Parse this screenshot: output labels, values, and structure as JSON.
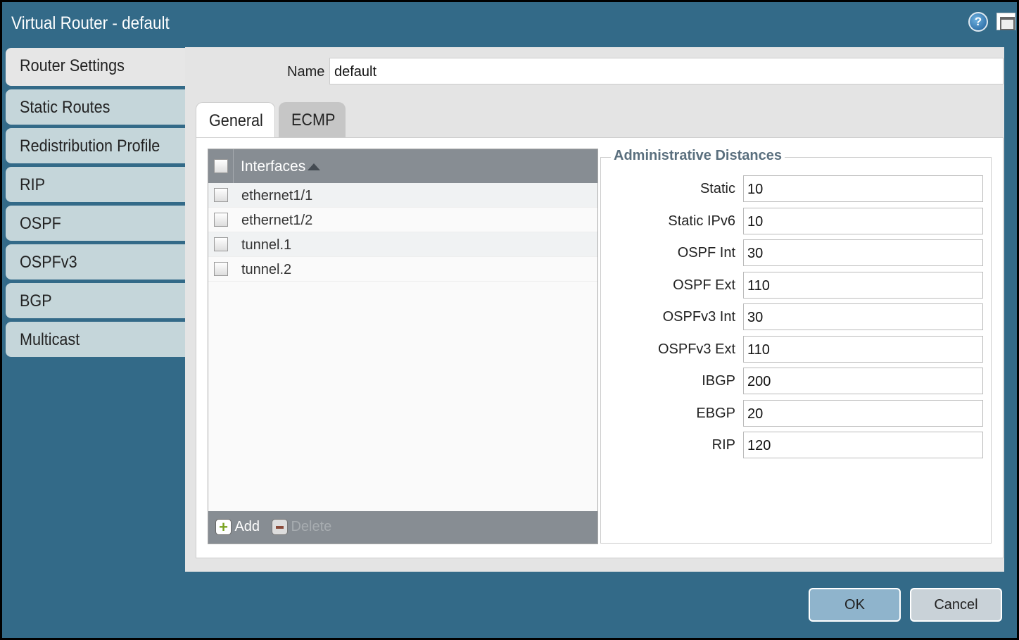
{
  "window": {
    "title": "Virtual Router - default"
  },
  "sidebar": {
    "items": [
      {
        "label": "Router Settings",
        "active": true
      },
      {
        "label": "Static Routes"
      },
      {
        "label": "Redistribution Profile"
      },
      {
        "label": "RIP"
      },
      {
        "label": "OSPF"
      },
      {
        "label": "OSPFv3"
      },
      {
        "label": "BGP"
      },
      {
        "label": "Multicast"
      }
    ]
  },
  "name": {
    "label": "Name",
    "value": "default"
  },
  "tabs": [
    {
      "label": "General",
      "active": true
    },
    {
      "label": "ECMP"
    }
  ],
  "interfaces": {
    "header": "Interfaces",
    "sort": "ascending",
    "rows": [
      "ethernet1/1",
      "ethernet1/2",
      "tunnel.1",
      "tunnel.2"
    ],
    "add_label": "Add",
    "delete_label": "Delete"
  },
  "admin_distances": {
    "title": "Administrative Distances",
    "fields": [
      {
        "label": "Static",
        "value": "10"
      },
      {
        "label": "Static IPv6",
        "value": "10"
      },
      {
        "label": "OSPF Int",
        "value": "30"
      },
      {
        "label": "OSPF Ext",
        "value": "110"
      },
      {
        "label": "OSPFv3 Int",
        "value": "30"
      },
      {
        "label": "OSPFv3 Ext",
        "value": "110"
      },
      {
        "label": "IBGP",
        "value": "200"
      },
      {
        "label": "EBGP",
        "value": "20"
      },
      {
        "label": "RIP",
        "value": "120"
      }
    ]
  },
  "buttons": {
    "ok": "OK",
    "cancel": "Cancel"
  },
  "colors": {
    "titlebar": "#336a88",
    "sidebar_item": "#c5d6da",
    "grid_header": "#878d93",
    "ok_button": "#8fb4cc"
  }
}
